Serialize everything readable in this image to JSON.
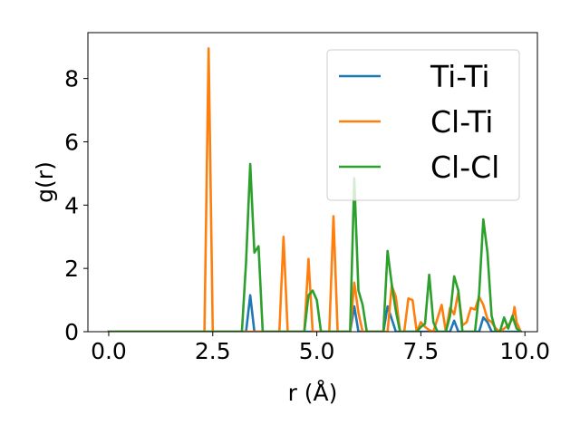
{
  "chart_data": {
    "type": "line",
    "title": "",
    "xlabel": "r (Å)",
    "ylabel": "g(r)",
    "xlim": [
      -0.5,
      10.3
    ],
    "ylim": [
      0,
      9.45
    ],
    "xticks": [
      0.0,
      2.5,
      5.0,
      7.5,
      10.0
    ],
    "xtick_labels": [
      "0.0",
      "2.5",
      "5.0",
      "7.5",
      "10.0"
    ],
    "yticks": [
      0,
      2,
      4,
      6,
      8
    ],
    "ytick_labels": [
      "0",
      "2",
      "4",
      "6",
      "8"
    ],
    "grid": false,
    "legend": "top-right",
    "series": [
      {
        "name": "Ti-Ti",
        "color": "#1f77b4",
        "points": [
          [
            0.0,
            0
          ],
          [
            3.3,
            0
          ],
          [
            3.4,
            1.15
          ],
          [
            3.5,
            0
          ],
          [
            5.8,
            0
          ],
          [
            5.9,
            0.8
          ],
          [
            6.0,
            0
          ],
          [
            6.6,
            0
          ],
          [
            6.7,
            0.8
          ],
          [
            6.8,
            0.4
          ],
          [
            6.9,
            0
          ],
          [
            8.2,
            0
          ],
          [
            8.3,
            0.35
          ],
          [
            8.4,
            0
          ],
          [
            8.9,
            0
          ],
          [
            9.0,
            0.45
          ],
          [
            9.1,
            0.3
          ],
          [
            9.2,
            0
          ],
          [
            9.9,
            0
          ]
        ]
      },
      {
        "name": "Cl-Ti",
        "color": "#ff7f0e",
        "points": [
          [
            0.0,
            0
          ],
          [
            2.3,
            0
          ],
          [
            2.4,
            8.95
          ],
          [
            2.5,
            0
          ],
          [
            4.1,
            0
          ],
          [
            4.2,
            3.0
          ],
          [
            4.3,
            0
          ],
          [
            4.7,
            0
          ],
          [
            4.8,
            2.3
          ],
          [
            4.9,
            0
          ],
          [
            5.3,
            0
          ],
          [
            5.4,
            3.65
          ],
          [
            5.5,
            0
          ],
          [
            5.8,
            0
          ],
          [
            5.9,
            1.55
          ],
          [
            6.0,
            0.6
          ],
          [
            6.1,
            0
          ],
          [
            6.7,
            0
          ],
          [
            6.8,
            1.45
          ],
          [
            6.9,
            1.1
          ],
          [
            7.0,
            0
          ],
          [
            7.1,
            0
          ],
          [
            7.2,
            1.05
          ],
          [
            7.3,
            1.0
          ],
          [
            7.4,
            0
          ],
          [
            7.5,
            0.3
          ],
          [
            7.6,
            0.15
          ],
          [
            7.7,
            0.05
          ],
          [
            7.8,
            0
          ],
          [
            8.0,
            0.85
          ],
          [
            8.1,
            0
          ],
          [
            8.2,
            0.75
          ],
          [
            8.3,
            0.55
          ],
          [
            8.4,
            1.25
          ],
          [
            8.5,
            0.2
          ],
          [
            8.6,
            0.3
          ],
          [
            8.7,
            0.75
          ],
          [
            8.8,
            0.7
          ],
          [
            8.9,
            1.1
          ],
          [
            9.0,
            0.85
          ],
          [
            9.1,
            0.4
          ],
          [
            9.2,
            0.3
          ],
          [
            9.3,
            0.1
          ],
          [
            9.4,
            0
          ],
          [
            9.5,
            0.1
          ],
          [
            9.6,
            0.2
          ],
          [
            9.7,
            0.4
          ],
          [
            9.75,
            0.78
          ],
          [
            9.8,
            0.3
          ],
          [
            9.9,
            0
          ]
        ]
      },
      {
        "name": "Cl-Cl",
        "color": "#2ca02c",
        "points": [
          [
            0.0,
            0
          ],
          [
            3.2,
            0
          ],
          [
            3.3,
            2.2
          ],
          [
            3.4,
            5.3
          ],
          [
            3.5,
            2.5
          ],
          [
            3.6,
            2.7
          ],
          [
            3.7,
            0
          ],
          [
            4.6,
            0
          ],
          [
            4.7,
            0
          ],
          [
            4.8,
            1.15
          ],
          [
            4.9,
            1.3
          ],
          [
            5.0,
            1.0
          ],
          [
            5.1,
            0
          ],
          [
            5.8,
            0
          ],
          [
            5.9,
            4.85
          ],
          [
            6.0,
            1.3
          ],
          [
            6.1,
            0.85
          ],
          [
            6.2,
            0
          ],
          [
            6.3,
            0
          ],
          [
            6.6,
            0
          ],
          [
            6.7,
            2.55
          ],
          [
            6.8,
            1.5
          ],
          [
            6.9,
            0.65
          ],
          [
            7.0,
            0
          ],
          [
            7.4,
            0
          ],
          [
            7.5,
            0.15
          ],
          [
            7.6,
            0.25
          ],
          [
            7.7,
            1.8
          ],
          [
            7.8,
            0.3
          ],
          [
            7.9,
            0
          ],
          [
            8.1,
            0
          ],
          [
            8.2,
            0.5
          ],
          [
            8.3,
            1.75
          ],
          [
            8.4,
            1.3
          ],
          [
            8.5,
            0
          ],
          [
            8.8,
            0
          ],
          [
            8.9,
            1.2
          ],
          [
            9.0,
            3.55
          ],
          [
            9.1,
            2.5
          ],
          [
            9.2,
            0.5
          ],
          [
            9.3,
            0
          ],
          [
            9.4,
            0
          ],
          [
            9.5,
            0.45
          ],
          [
            9.6,
            0.1
          ],
          [
            9.7,
            0.5
          ],
          [
            9.8,
            0.1
          ],
          [
            9.9,
            0
          ]
        ]
      }
    ]
  }
}
